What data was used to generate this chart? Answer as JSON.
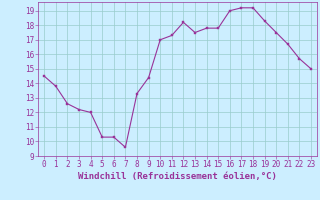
{
  "x": [
    0,
    1,
    2,
    3,
    4,
    5,
    6,
    7,
    8,
    9,
    10,
    11,
    12,
    13,
    14,
    15,
    16,
    17,
    18,
    19,
    20,
    21,
    22,
    23
  ],
  "y": [
    14.5,
    13.8,
    12.6,
    12.2,
    12.0,
    10.3,
    10.3,
    9.6,
    13.3,
    14.4,
    17.0,
    17.3,
    18.2,
    17.5,
    17.8,
    17.8,
    19.0,
    19.2,
    19.2,
    18.3,
    17.5,
    16.7,
    15.7,
    15.0
  ],
  "line_color": "#993399",
  "marker_color": "#993399",
  "bg_color": "#cceeff",
  "grid_color": "#99cccc",
  "xlabel": "Windchill (Refroidissement éolien,°C)",
  "xlim": [
    -0.5,
    23.5
  ],
  "ylim": [
    9,
    19.6
  ],
  "yticks": [
    9,
    10,
    11,
    12,
    13,
    14,
    15,
    16,
    17,
    18,
    19
  ],
  "xticks": [
    0,
    1,
    2,
    3,
    4,
    5,
    6,
    7,
    8,
    9,
    10,
    11,
    12,
    13,
    14,
    15,
    16,
    17,
    18,
    19,
    20,
    21,
    22,
    23
  ],
  "xlabel_fontsize": 6.5,
  "tick_fontsize": 5.5,
  "text_color": "#993399"
}
